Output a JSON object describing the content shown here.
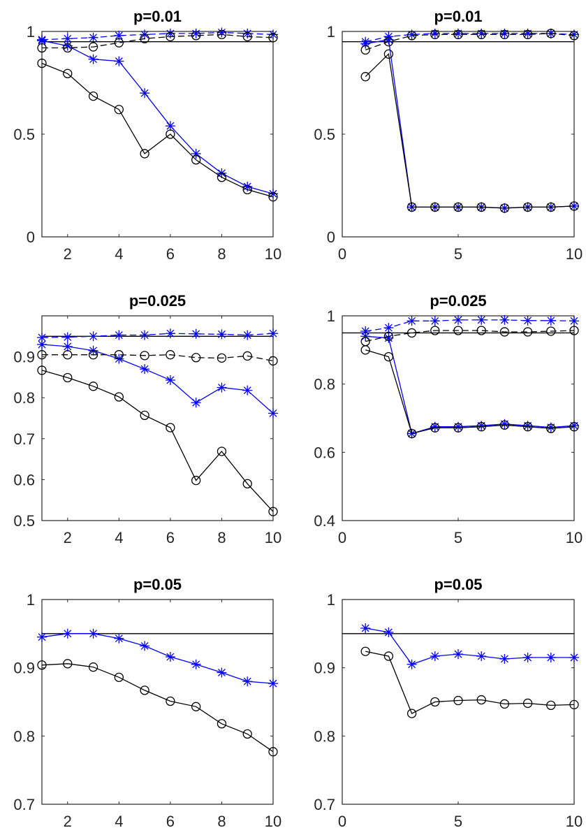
{
  "chart_data": [
    {
      "type": "line",
      "title": "p=0.01",
      "xlim": [
        1,
        10
      ],
      "ylim": [
        0,
        1
      ],
      "xticks": [
        2,
        4,
        6,
        8,
        10
      ],
      "xtick_labels": [
        "2",
        "4",
        "6",
        "8",
        "10"
      ],
      "yticks": [
        0,
        0.5,
        1
      ],
      "ytick_labels": [
        "0",
        "0.5",
        "1"
      ],
      "reference_line": 0.95,
      "x": [
        1,
        2,
        3,
        4,
        5,
        6,
        7,
        8,
        9,
        10
      ],
      "series": [
        {
          "marker": "star",
          "style": "dashed",
          "color": "#0000ff",
          "values": [
            0.96,
            0.965,
            0.97,
            0.98,
            0.985,
            0.99,
            0.99,
            0.995,
            0.99,
            0.985
          ]
        },
        {
          "marker": "star",
          "style": "solid",
          "color": "#0000ff",
          "values": [
            0.955,
            0.93,
            0.865,
            0.855,
            0.7,
            0.54,
            0.405,
            0.31,
            0.245,
            0.21
          ]
        },
        {
          "marker": "circle",
          "style": "dashed",
          "color": "#000000",
          "values": [
            0.92,
            0.92,
            0.925,
            0.945,
            0.965,
            0.975,
            0.98,
            0.985,
            0.975,
            0.97
          ]
        },
        {
          "marker": "circle",
          "style": "solid",
          "color": "#000000",
          "values": [
            0.845,
            0.795,
            0.685,
            0.62,
            0.405,
            0.5,
            0.375,
            0.29,
            0.23,
            0.195
          ]
        }
      ]
    },
    {
      "type": "line",
      "title": "p=0.01",
      "xlim": [
        0,
        10
      ],
      "ylim": [
        0,
        1
      ],
      "xticks": [
        0,
        5,
        10
      ],
      "xtick_labels": [
        "0",
        "5",
        "10"
      ],
      "yticks": [
        0,
        0.5,
        1
      ],
      "ytick_labels": [
        "0",
        "0.5",
        "1"
      ],
      "reference_line": 0.95,
      "x": [
        1,
        2,
        3,
        4,
        5,
        6,
        7,
        8,
        9,
        10
      ],
      "series": [
        {
          "marker": "star",
          "style": "dashed",
          "color": "#0000ff",
          "values": [
            0.95,
            0.975,
            0.985,
            0.99,
            0.99,
            0.99,
            0.99,
            0.99,
            0.99,
            0.985
          ]
        },
        {
          "marker": "star",
          "style": "solid",
          "color": "#0000ff",
          "values": [
            0.94,
            0.96,
            0.145,
            0.145,
            0.145,
            0.145,
            0.14,
            0.145,
            0.145,
            0.15
          ]
        },
        {
          "marker": "circle",
          "style": "dashed",
          "color": "#000000",
          "values": [
            0.91,
            0.95,
            0.98,
            0.985,
            0.985,
            0.985,
            0.985,
            0.985,
            0.99,
            0.98
          ]
        },
        {
          "marker": "circle",
          "style": "solid",
          "color": "#000000",
          "values": [
            0.78,
            0.89,
            0.145,
            0.145,
            0.145,
            0.145,
            0.14,
            0.145,
            0.145,
            0.15
          ]
        }
      ]
    },
    {
      "type": "line",
      "title": "p=0.025",
      "xlim": [
        1,
        10
      ],
      "ylim": [
        0.5,
        1
      ],
      "xticks": [
        2,
        4,
        6,
        8,
        10
      ],
      "xtick_labels": [
        "2",
        "4",
        "6",
        "8",
        "10"
      ],
      "yticks": [
        0.5,
        0.6,
        0.7,
        0.8,
        0.9
      ],
      "ytick_labels": [
        "0.5",
        "0.6",
        "0.7",
        "0.8",
        "0.9"
      ],
      "reference_line": 0.95,
      "x": [
        1,
        2,
        3,
        4,
        5,
        6,
        7,
        8,
        9,
        10
      ],
      "series": [
        {
          "marker": "star",
          "style": "dashed",
          "color": "#0000ff",
          "values": [
            0.947,
            0.948,
            0.95,
            0.953,
            0.953,
            0.957,
            0.956,
            0.955,
            0.953,
            0.957
          ]
        },
        {
          "marker": "star",
          "style": "solid",
          "color": "#0000ff",
          "values": [
            0.93,
            0.925,
            0.915,
            0.895,
            0.87,
            0.843,
            0.788,
            0.825,
            0.818,
            0.762
          ]
        },
        {
          "marker": "circle",
          "style": "dashed",
          "color": "#000000",
          "values": [
            0.905,
            0.905,
            0.905,
            0.905,
            0.903,
            0.905,
            0.898,
            0.897,
            0.902,
            0.89
          ]
        },
        {
          "marker": "circle",
          "style": "solid",
          "color": "#000000",
          "values": [
            0.867,
            0.849,
            0.828,
            0.802,
            0.757,
            0.727,
            0.598,
            0.669,
            0.59,
            0.522
          ]
        }
      ]
    },
    {
      "type": "line",
      "title": "p=0.025",
      "xlim": [
        0,
        10
      ],
      "ylim": [
        0.4,
        1
      ],
      "xticks": [
        0,
        5,
        10
      ],
      "xtick_labels": [
        "0",
        "5",
        "10"
      ],
      "yticks": [
        0.4,
        0.6,
        0.8,
        1
      ],
      "ytick_labels": [
        "0.4",
        "0.6",
        "0.8",
        "1"
      ],
      "reference_line": 0.95,
      "x": [
        1,
        2,
        3,
        4,
        5,
        6,
        7,
        8,
        9,
        10
      ],
      "series": [
        {
          "marker": "star",
          "style": "dashed",
          "color": "#0000ff",
          "values": [
            0.955,
            0.965,
            0.985,
            0.985,
            0.988,
            0.988,
            0.988,
            0.986,
            0.986,
            0.985
          ]
        },
        {
          "marker": "star",
          "style": "solid",
          "color": "#0000ff",
          "values": [
            0.94,
            0.935,
            0.655,
            0.675,
            0.675,
            0.678,
            0.683,
            0.678,
            0.673,
            0.678
          ]
        },
        {
          "marker": "circle",
          "style": "dashed",
          "color": "#000000",
          "values": [
            0.925,
            0.94,
            0.95,
            0.957,
            0.957,
            0.957,
            0.953,
            0.953,
            0.955,
            0.957
          ]
        },
        {
          "marker": "circle",
          "style": "solid",
          "color": "#000000",
          "values": [
            0.9,
            0.88,
            0.655,
            0.672,
            0.672,
            0.675,
            0.68,
            0.675,
            0.67,
            0.675
          ]
        }
      ]
    },
    {
      "type": "line",
      "title": "p=0.05",
      "xlim": [
        1,
        10
      ],
      "ylim": [
        0.7,
        1
      ],
      "xticks": [
        2,
        4,
        6,
        8,
        10
      ],
      "xtick_labels": [
        "2",
        "4",
        "6",
        "8",
        "10"
      ],
      "yticks": [
        0.7,
        0.8,
        0.9,
        1
      ],
      "ytick_labels": [
        "0.7",
        "0.8",
        "0.9",
        "1"
      ],
      "reference_line": 0.95,
      "x": [
        1,
        2,
        3,
        4,
        5,
        6,
        7,
        8,
        9,
        10
      ],
      "series": [
        {
          "marker": "star",
          "style": "solid",
          "color": "#0000ff",
          "values": [
            0.945,
            0.95,
            0.95,
            0.943,
            0.932,
            0.916,
            0.905,
            0.893,
            0.88,
            0.877
          ]
        },
        {
          "marker": "circle",
          "style": "solid",
          "color": "#000000",
          "values": [
            0.904,
            0.906,
            0.901,
            0.886,
            0.867,
            0.851,
            0.843,
            0.818,
            0.803,
            0.777
          ]
        }
      ]
    },
    {
      "type": "line",
      "title": "p=0.05",
      "xlim": [
        0,
        10
      ],
      "ylim": [
        0.7,
        1
      ],
      "xticks": [
        0,
        5,
        10
      ],
      "xtick_labels": [
        "0",
        "5",
        "10"
      ],
      "yticks": [
        0.7,
        0.8,
        0.9,
        1
      ],
      "ytick_labels": [
        "0.7",
        "0.8",
        "0.9",
        "1"
      ],
      "reference_line": 0.95,
      "x": [
        1,
        2,
        3,
        4,
        5,
        6,
        7,
        8,
        9,
        10
      ],
      "series": [
        {
          "marker": "star",
          "style": "solid",
          "color": "#0000ff",
          "values": [
            0.958,
            0.952,
            0.905,
            0.917,
            0.92,
            0.917,
            0.913,
            0.915,
            0.915,
            0.915
          ]
        },
        {
          "marker": "circle",
          "style": "solid",
          "color": "#000000",
          "values": [
            0.924,
            0.917,
            0.833,
            0.85,
            0.852,
            0.853,
            0.847,
            0.848,
            0.845,
            0.846
          ]
        }
      ]
    }
  ]
}
